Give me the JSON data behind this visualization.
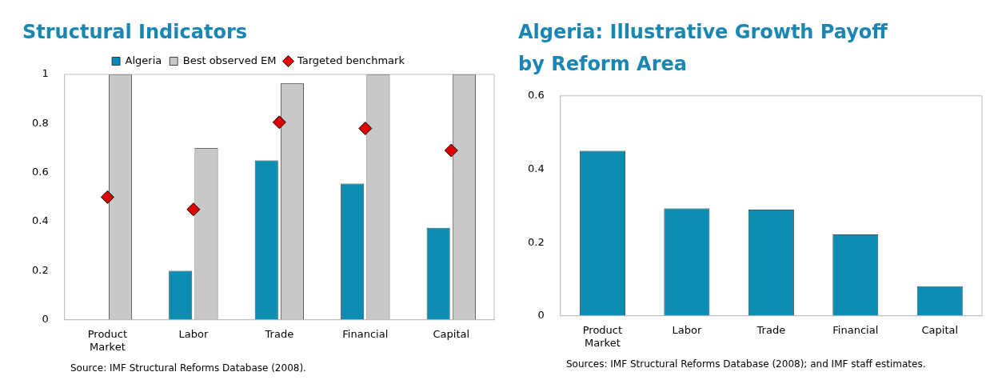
{
  "chart_data": [
    {
      "type": "bar",
      "title": "Structural Indicators",
      "categories": [
        "Product Market",
        "Labor",
        "Trade",
        "Financial",
        "Capital"
      ],
      "series": [
        {
          "name": "Algeria",
          "color": "#0b8db1",
          "values": [
            0,
            0.2,
            0.65,
            0.555,
            0.375
          ]
        },
        {
          "name": "Best observed EM",
          "color": "#c8c8c8",
          "values": [
            1,
            0.7,
            0.963,
            1,
            1
          ]
        },
        {
          "name": "Targeted benchmark",
          "type": "scatter",
          "color": "#e00000",
          "x": [
            "Product Market",
            "Labor",
            "Trade",
            "Financial",
            "Capital"
          ],
          "values": [
            0.5,
            0.45,
            0.805,
            0.78,
            0.69
          ]
        }
      ],
      "ylim": [
        0,
        1
      ],
      "yticks": [
        0,
        0.2,
        0.4,
        0.6,
        0.8,
        1
      ],
      "legend": "top",
      "marker": "diamond",
      "grid": false,
      "annotations": [
        "Source: IMF Structural Reforms Database (2008)."
      ]
    },
    {
      "type": "bar",
      "title": "Algeria: Illustrative Growth Payoff by Reform Area",
      "categories": [
        "Product Market",
        "Labor",
        "Trade",
        "Financial",
        "Capital"
      ],
      "values": [
        0.45,
        0.293,
        0.29,
        0.222,
        0.081
      ],
      "color": "#0b8db1",
      "ylim": [
        0,
        0.6
      ],
      "yticks": [
        0,
        0.2,
        0.4,
        0.6
      ],
      "grid": false,
      "annotations": [
        "Sources: IMF Structural Reforms Database (2008); and IMF staff estimates."
      ]
    }
  ]
}
